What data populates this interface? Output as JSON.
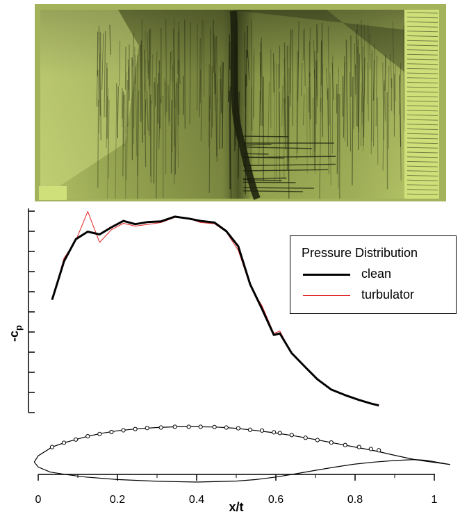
{
  "chart_data": {
    "type": "line",
    "title": "",
    "xlabel": "x/t",
    "ylabel": "-cp",
    "ylabel_main": "-c",
    "ylabel_sub": "p",
    "xlim": [
      0,
      1
    ],
    "x_ticks": [
      0,
      0.2,
      0.4,
      0.6,
      0.8,
      1
    ],
    "x_tick_labels": [
      "0",
      "0.2",
      "0.4",
      "0.6",
      "0.8",
      "1"
    ],
    "y_tick_count": 11,
    "y_tick_labels": [],
    "legend": {
      "title": "Pressure Distribution",
      "placement": "right",
      "entries": [
        "clean",
        "turbulator"
      ]
    },
    "series": [
      {
        "name": "clean",
        "color": "#000000",
        "x": [
          0.035,
          0.065,
          0.095,
          0.125,
          0.155,
          0.185,
          0.215,
          0.245,
          0.275,
          0.31,
          0.345,
          0.38,
          0.41,
          0.445,
          0.475,
          0.505,
          0.535,
          0.565,
          0.595,
          0.61,
          0.64,
          0.675,
          0.705,
          0.74,
          0.775,
          0.81,
          0.84,
          0.86
        ],
        "y": [
          0.285,
          0.382,
          0.438,
          0.457,
          0.45,
          0.468,
          0.484,
          0.476,
          0.481,
          0.483,
          0.495,
          0.49,
          0.484,
          0.48,
          0.458,
          0.42,
          0.324,
          0.262,
          0.196,
          0.2,
          0.15,
          0.114,
          0.084,
          0.058,
          0.044,
          0.032,
          0.023,
          0.018
        ]
      },
      {
        "name": "turbulator",
        "color": "#e02020",
        "x": [
          0.035,
          0.065,
          0.095,
          0.125,
          0.155,
          0.185,
          0.215,
          0.245,
          0.275,
          0.31,
          0.345,
          0.38,
          0.41,
          0.445,
          0.475,
          0.505,
          0.535,
          0.565,
          0.595,
          0.61,
          0.64,
          0.675,
          0.705,
          0.74,
          0.775,
          0.81,
          0.84,
          0.86
        ],
        "y": [
          0.285,
          0.39,
          0.435,
          0.508,
          0.43,
          0.462,
          0.478,
          0.471,
          0.475,
          0.48,
          0.493,
          0.49,
          0.48,
          0.477,
          0.456,
          0.41,
          0.32,
          0.27,
          0.2,
          0.206,
          0.15,
          0.112,
          0.083,
          0.057,
          0.043,
          0.031,
          0.022,
          0.016
        ]
      }
    ],
    "airfoil": {
      "upper": {
        "x": [
          -0.01,
          0.0,
          0.035,
          0.065,
          0.095,
          0.125,
          0.16,
          0.2,
          0.25,
          0.3,
          0.35,
          0.4,
          0.45,
          0.5,
          0.55,
          0.6,
          0.65,
          0.7,
          0.75,
          0.8,
          0.85,
          0.9,
          0.95,
          0.98,
          1.04
        ],
        "y": [
          -0.12,
          -0.095,
          -0.06,
          -0.043,
          -0.03,
          -0.017,
          -0.005,
          0.005,
          0.013,
          0.018,
          0.021,
          0.021,
          0.02,
          0.015,
          0.006,
          -0.004,
          -0.016,
          -0.03,
          -0.045,
          -0.06,
          -0.075,
          -0.093,
          -0.11,
          -0.117,
          -0.13
        ]
      },
      "lower": {
        "x": [
          -0.01,
          0.0,
          0.03,
          0.07,
          0.12,
          0.2,
          0.3,
          0.4,
          0.5,
          0.55,
          0.6,
          0.65,
          0.7,
          0.75,
          0.8,
          0.85,
          0.9,
          0.95,
          0.98,
          1.04
        ],
        "y": [
          -0.12,
          -0.14,
          -0.16,
          -0.17,
          -0.18,
          -0.19,
          -0.197,
          -0.2,
          -0.196,
          -0.19,
          -0.18,
          -0.167,
          -0.153,
          -0.14,
          -0.128,
          -0.12,
          -0.114,
          -0.11,
          -0.113,
          -0.13
        ]
      },
      "tap_x": [
        0.035,
        0.065,
        0.095,
        0.125,
        0.155,
        0.185,
        0.215,
        0.245,
        0.275,
        0.31,
        0.345,
        0.38,
        0.41,
        0.445,
        0.475,
        0.505,
        0.535,
        0.565,
        0.595,
        0.61,
        0.64,
        0.675,
        0.705,
        0.74,
        0.775,
        0.81,
        0.84,
        0.86
      ],
      "tap_y": [
        -0.06,
        -0.043,
        -0.03,
        -0.017,
        -0.008,
        0.0,
        0.007,
        0.012,
        0.016,
        0.018,
        0.021,
        0.021,
        0.021,
        0.02,
        0.018,
        0.015,
        0.009,
        0.006,
        -0.001,
        -0.004,
        -0.012,
        -0.023,
        -0.032,
        -0.042,
        -0.052,
        -0.06,
        -0.068,
        -0.073
      ]
    }
  },
  "colors": {
    "photo_base": "#a3b35b",
    "photo_light": "#cfe07a",
    "photo_dark": "#3b4420",
    "clean_line": "#000000",
    "turbulator_line": "#e02020"
  }
}
